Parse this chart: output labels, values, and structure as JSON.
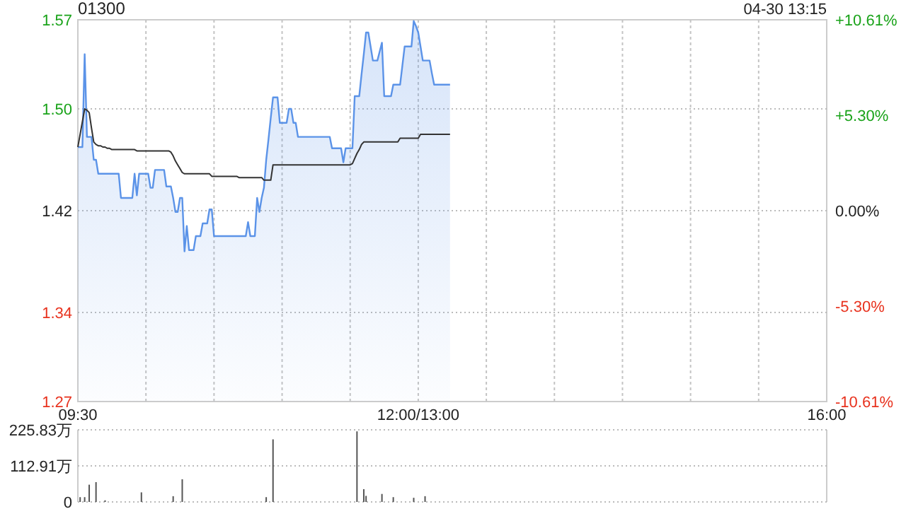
{
  "chart_data": [
    {
      "type": "area",
      "title": "01300",
      "annotations": [
        "04-30 13:15"
      ],
      "categories": [
        "09:30",
        null,
        null,
        null,
        null,
        null,
        null,
        null,
        null,
        null,
        null,
        null,
        null,
        null,
        null,
        null,
        null,
        null,
        null,
        null,
        null,
        null,
        null,
        null,
        null,
        null,
        null,
        null,
        null,
        null,
        null,
        null,
        null,
        null,
        null,
        null,
        null,
        null,
        null,
        null,
        null,
        null,
        null,
        null,
        null,
        null,
        null,
        null,
        null,
        null,
        null,
        null,
        null,
        null,
        null,
        null,
        null,
        null,
        null,
        null,
        null,
        null,
        null,
        null,
        null,
        null,
        null,
        null,
        null,
        null,
        null,
        null,
        null,
        null,
        null,
        null,
        null,
        null,
        null,
        null,
        null,
        null,
        null,
        null,
        null,
        null,
        null,
        null,
        null,
        null,
        null,
        null,
        null,
        null,
        null,
        null,
        null,
        null,
        null,
        null,
        null,
        null,
        null,
        null,
        null,
        null,
        null,
        null,
        null,
        null,
        null,
        null,
        null,
        null,
        null,
        null,
        null,
        null,
        null,
        null,
        null,
        null,
        null,
        null,
        null,
        null,
        null,
        null,
        null,
        null,
        null,
        null,
        null,
        null,
        null,
        null,
        null,
        null,
        null,
        null,
        null,
        null,
        null,
        null,
        null,
        null,
        null,
        null,
        null,
        null,
        "12:00/13:00",
        null,
        null,
        null,
        null,
        null,
        null,
        null,
        null,
        null,
        null,
        null,
        null,
        null,
        null,
        null,
        null,
        null,
        null,
        null,
        null,
        null,
        null,
        null,
        null,
        null,
        null,
        null,
        null,
        null,
        null,
        null,
        null,
        null,
        null,
        null,
        null,
        null,
        null,
        null,
        null,
        null,
        null,
        null,
        null,
        null,
        null,
        null,
        null,
        null,
        null,
        null,
        null,
        null,
        null,
        null,
        null,
        null,
        null,
        null,
        null,
        null,
        null,
        null,
        null,
        null,
        null,
        null,
        null,
        null,
        null,
        null,
        null,
        null,
        null,
        null,
        null,
        null,
        null,
        null,
        null,
        null,
        null,
        null,
        null,
        null,
        null,
        null,
        null,
        null,
        null,
        null,
        null,
        null,
        null,
        null,
        null,
        null,
        null,
        null,
        null,
        null,
        null,
        null,
        null,
        null,
        null,
        null,
        null,
        null,
        null,
        null,
        null,
        null,
        null,
        null,
        null,
        null,
        null,
        null,
        null,
        null,
        null,
        null,
        null,
        null,
        null,
        null,
        null,
        null,
        null,
        null,
        null,
        null,
        null,
        null,
        null,
        null,
        null,
        null,
        null,
        null,
        null,
        null,
        null,
        null,
        null,
        null,
        null,
        null,
        null,
        null,
        null,
        null,
        null,
        null,
        null,
        null,
        null,
        null,
        null,
        null,
        null,
        null,
        null,
        null,
        null,
        null,
        null,
        null,
        null,
        null,
        null,
        null,
        null,
        null,
        null,
        null,
        null,
        null,
        "16:00"
      ],
      "ylim": [
        1.27,
        1.57
      ],
      "yticks": [
        1.27,
        1.34,
        1.42,
        {
          "value": 1.5,
          "label": "1.50"
        },
        1.57
      ],
      "y2lim": [
        -10.61,
        10.61
      ],
      "y2ticks": [
        {
          "value": -10.61,
          "label": "-10.61%"
        },
        {
          "value": -5.3,
          "label": "-5.30%"
        },
        {
          "value": 0,
          "label": "0.00%"
        },
        {
          "value": 5.3,
          "label": "+5.30%"
        },
        {
          "value": 10.61,
          "label": "+10.61%"
        }
      ],
      "grid": true,
      "series": [
        {
          "type": "area",
          "color": "#5b93e8",
          "values": [
            1.47,
            1.47,
            1.47,
            1.543,
            1.478,
            1.478,
            1.478,
            1.46,
            1.46,
            1.449,
            1.449,
            1.449,
            1.449,
            1.449,
            1.449,
            1.449,
            1.449,
            1.449,
            1.449,
            1.43,
            1.43,
            1.43,
            1.43,
            1.43,
            1.43,
            1.449,
            1.432,
            1.449,
            1.449,
            1.449,
            1.449,
            1.449,
            1.438,
            1.438,
            1.452,
            1.452,
            1.452,
            1.452,
            1.452,
            1.439,
            1.439,
            1.439,
            1.43,
            1.419,
            1.419,
            1.43,
            1.43,
            1.388,
            1.408,
            1.389,
            1.389,
            1.389,
            1.4,
            1.4,
            1.4,
            1.41,
            1.41,
            1.41,
            1.421,
            1.421,
            1.4,
            1.4,
            1.4,
            1.4,
            1.4,
            1.4,
            1.4,
            1.4,
            1.4,
            1.4,
            1.4,
            1.4,
            1.4,
            1.4,
            1.4,
            1.411,
            1.4,
            1.4,
            1.4,
            1.43,
            1.419,
            1.43,
            1.438,
            1.46,
            1.476,
            1.493,
            1.509,
            1.509,
            1.509,
            1.489,
            1.489,
            1.489,
            1.489,
            1.5,
            1.5,
            1.489,
            1.489,
            1.478,
            1.478,
            1.478,
            1.478,
            1.478,
            1.478,
            1.478,
            1.478,
            1.478,
            1.478,
            1.478,
            1.478,
            1.478,
            1.478,
            1.478,
            1.469,
            1.469,
            1.469,
            1.469,
            1.469,
            1.458,
            1.469,
            1.469,
            1.469,
            1.469,
            1.51,
            1.51,
            1.51,
            1.527,
            1.543,
            1.56,
            1.56,
            1.549,
            1.538,
            1.538,
            1.538,
            1.545,
            1.552,
            1.51,
            1.51,
            1.51,
            1.51,
            1.519,
            1.519,
            1.519,
            1.519,
            1.534,
            1.549,
            1.549,
            1.549,
            1.549,
            1.569,
            1.565,
            1.56,
            1.549,
            1.538,
            1.538,
            1.538,
            1.538,
            1.528,
            1.519,
            1.519,
            1.519,
            1.519,
            1.519,
            1.519,
            1.519,
            1.519,
            null,
            null,
            null,
            null,
            null,
            null,
            null,
            null,
            null,
            null,
            null,
            null,
            null,
            null,
            null,
            null,
            null,
            null,
            null,
            null,
            null,
            null,
            null,
            null,
            null,
            null,
            null,
            null,
            null,
            null,
            null,
            null,
            null,
            null,
            null,
            null,
            null,
            null,
            null,
            null,
            null,
            null,
            null,
            null,
            null,
            null,
            null,
            null,
            null,
            null,
            null,
            null,
            null,
            null,
            null,
            null,
            null,
            null,
            null,
            null,
            null,
            null,
            null,
            null,
            null,
            null,
            null,
            null,
            null,
            null,
            null,
            null,
            null,
            null,
            null,
            null,
            null,
            null,
            null,
            null,
            null,
            null,
            null,
            null,
            null,
            null,
            null,
            null,
            null,
            null,
            null,
            null,
            null,
            null,
            null,
            null,
            null,
            null,
            null,
            null,
            null,
            null,
            null,
            null,
            null,
            null,
            null,
            null,
            null,
            null,
            null,
            null,
            null,
            null,
            null,
            null,
            null,
            null,
            null,
            null,
            null,
            null,
            null,
            null,
            null,
            null,
            null,
            null,
            null,
            null,
            null,
            null,
            null,
            null,
            null,
            null,
            null,
            null,
            null,
            null,
            null,
            null,
            null,
            null,
            null,
            null,
            null,
            null,
            null,
            null,
            null,
            null,
            null,
            null,
            null,
            null,
            null,
            null,
            null,
            null,
            null,
            null,
            null,
            null,
            null,
            null
          ]
        },
        {
          "type": "line",
          "color": "#333333",
          "values": [
            1.47,
            1.48,
            1.49,
            1.5,
            1.499,
            1.497,
            1.485,
            1.474,
            1.472,
            1.471,
            1.471,
            1.47,
            1.47,
            1.469,
            1.469,
            1.468,
            1.468,
            1.468,
            1.468,
            1.468,
            1.468,
            1.468,
            1.468,
            1.468,
            1.468,
            1.468,
            1.467,
            1.467,
            1.467,
            1.467,
            1.467,
            1.467,
            1.467,
            1.467,
            1.467,
            1.467,
            1.467,
            1.467,
            1.467,
            1.467,
            1.467,
            1.466,
            1.463,
            1.459,
            1.456,
            1.453,
            1.45,
            1.449,
            1.449,
            1.449,
            1.449,
            1.449,
            1.449,
            1.449,
            1.449,
            1.449,
            1.449,
            1.449,
            1.449,
            1.447,
            1.447,
            1.447,
            1.447,
            1.447,
            1.447,
            1.447,
            1.447,
            1.447,
            1.447,
            1.447,
            1.447,
            1.446,
            1.446,
            1.446,
            1.446,
            1.446,
            1.446,
            1.446,
            1.446,
            1.446,
            1.446,
            1.446,
            1.444,
            1.444,
            1.444,
            1.444,
            1.456,
            1.456,
            1.456,
            1.456,
            1.456,
            1.456,
            1.456,
            1.456,
            1.456,
            1.456,
            1.456,
            1.456,
            1.456,
            1.456,
            1.456,
            1.456,
            1.456,
            1.456,
            1.456,
            1.456,
            1.456,
            1.456,
            1.456,
            1.456,
            1.456,
            1.456,
            1.456,
            1.456,
            1.456,
            1.456,
            1.456,
            1.456,
            1.456,
            1.456,
            1.456,
            1.457,
            1.461,
            1.465,
            1.468,
            1.472,
            1.474,
            1.474,
            1.474,
            1.474,
            1.474,
            1.474,
            1.474,
            1.474,
            1.474,
            1.474,
            1.474,
            1.474,
            1.474,
            1.474,
            1.474,
            1.474,
            1.477,
            1.477,
            1.477,
            1.477,
            1.477,
            1.477,
            1.477,
            1.477,
            1.477,
            1.48,
            1.48,
            1.48,
            1.48,
            1.48,
            1.48,
            1.48,
            1.48,
            1.48,
            1.48,
            1.48,
            1.48,
            1.48,
            1.48,
            null,
            null,
            null,
            null,
            null,
            null,
            null,
            null,
            null,
            null,
            null,
            null,
            null,
            null,
            null,
            null,
            null,
            null,
            null,
            null,
            null,
            null,
            null,
            null,
            null,
            null,
            null,
            null,
            null,
            null,
            null,
            null,
            null,
            null,
            null,
            null,
            null,
            null,
            null,
            null,
            null,
            null,
            null,
            null,
            null,
            null,
            null,
            null,
            null,
            null,
            null,
            null,
            null,
            null,
            null,
            null,
            null,
            null,
            null,
            null,
            null,
            null,
            null,
            null,
            null,
            null,
            null,
            null,
            null,
            null,
            null,
            null,
            null,
            null,
            null,
            null,
            null,
            null,
            null,
            null,
            null,
            null,
            null,
            null,
            null,
            null,
            null,
            null,
            null,
            null,
            null,
            null,
            null,
            null,
            null,
            null,
            null,
            null,
            null,
            null,
            null,
            null,
            null,
            null,
            null,
            null,
            null,
            null,
            null,
            null,
            null,
            null,
            null,
            null,
            null,
            null,
            null,
            null,
            null,
            null,
            null,
            null,
            null,
            null,
            null,
            null,
            null,
            null,
            null,
            null,
            null,
            null,
            null,
            null,
            null,
            null,
            null,
            null,
            null,
            null,
            null,
            null,
            null,
            null,
            null,
            null,
            null,
            null,
            null,
            null,
            null,
            null,
            null,
            null,
            null,
            null,
            null,
            null,
            null,
            null,
            null,
            null,
            null,
            null,
            null,
            null
          ]
        }
      ]
    },
    {
      "type": "bar",
      "color": "#555555",
      "tick_labels": "y",
      "grid": "y",
      "categories": [
        null,
        null,
        null,
        null,
        null,
        null,
        null,
        null,
        null,
        null,
        null,
        null,
        null,
        null,
        null,
        null,
        null,
        null,
        null,
        null,
        null,
        null,
        null,
        null,
        null,
        null,
        null,
        null,
        null,
        null,
        null,
        null,
        null,
        null,
        null,
        null,
        null,
        null,
        null,
        null,
        null,
        null,
        null,
        null,
        null,
        null,
        null,
        null,
        null,
        null,
        null,
        null,
        null,
        null,
        null,
        null,
        null,
        null,
        null,
        null,
        null,
        null,
        null,
        null,
        null,
        null,
        null,
        null,
        null,
        null,
        null,
        null,
        null,
        null,
        null,
        null,
        null,
        null,
        null,
        null,
        null,
        null,
        null,
        null,
        null,
        null,
        null,
        null,
        null,
        null,
        null,
        null,
        null,
        null,
        null,
        null,
        null,
        null,
        null,
        null,
        null,
        null,
        null,
        null,
        null,
        null,
        null,
        null,
        null,
        null,
        null,
        null,
        null,
        null,
        null,
        null,
        null,
        null,
        null,
        null,
        null,
        null,
        null,
        null,
        null,
        null,
        null,
        null,
        null,
        null,
        null,
        null,
        null,
        null,
        null,
        null,
        null,
        null,
        null,
        null,
        null,
        null,
        null,
        null,
        null,
        null,
        null,
        null,
        null,
        null,
        null,
        null,
        null,
        null,
        null,
        null,
        null,
        null,
        null,
        null,
        null,
        null,
        null,
        null,
        null,
        null,
        null,
        null,
        null,
        null,
        null,
        null,
        null,
        null,
        null,
        null,
        null,
        null,
        null,
        null,
        null,
        null,
        null,
        null,
        null,
        null,
        null,
        null,
        null,
        null,
        null,
        null,
        null,
        null,
        null,
        null,
        null,
        null,
        null,
        null,
        null,
        null,
        null,
        null,
        null,
        null,
        null,
        null,
        null,
        null,
        null,
        null,
        null,
        null,
        null,
        null,
        null,
        null,
        null,
        null,
        null,
        null,
        null,
        null,
        null,
        null,
        null,
        null,
        null,
        null,
        null,
        null,
        null,
        null,
        null,
        null,
        null,
        null,
        null,
        null,
        null,
        null,
        null,
        null,
        null,
        null,
        null,
        null,
        null,
        null,
        null,
        null,
        null,
        null,
        null,
        null,
        null,
        null,
        null,
        null,
        null,
        null,
        null,
        null,
        null,
        null,
        null,
        null,
        null,
        null,
        null,
        null,
        null,
        null,
        null,
        null,
        null,
        null,
        null,
        null,
        null,
        null,
        null,
        null,
        null,
        null,
        null,
        null,
        null,
        null,
        null,
        null,
        null,
        null,
        null,
        null,
        null,
        null,
        null,
        null,
        null,
        null,
        null,
        null,
        null,
        null,
        null,
        null,
        null,
        null,
        null,
        null,
        null,
        null,
        null,
        null,
        null,
        null,
        null,
        null,
        null,
        null,
        null,
        null,
        null,
        null,
        null,
        null,
        null,
        null,
        null
      ],
      "ylim": [
        0,
        225.83
      ],
      "yticks": [
        0,
        {
          "value": 112.91,
          "label": "112.91万"
        },
        {
          "value": 225.83,
          "label": "225.83万"
        }
      ],
      "values": [
        null,
        15,
        null,
        15,
        null,
        54,
        null,
        null,
        62,
        null,
        null,
        null,
        5,
        null,
        null,
        null,
        null,
        null,
        null,
        null,
        null,
        null,
        null,
        null,
        null,
        null,
        null,
        null,
        30,
        null,
        null,
        null,
        null,
        null,
        null,
        null,
        null,
        null,
        null,
        null,
        null,
        null,
        18,
        null,
        null,
        null,
        71,
        null,
        null,
        null,
        null,
        null,
        null,
        null,
        null,
        null,
        null,
        null,
        null,
        null,
        null,
        null,
        null,
        null,
        null,
        null,
        null,
        null,
        null,
        null,
        null,
        null,
        null,
        null,
        null,
        null,
        null,
        null,
        null,
        null,
        null,
        null,
        null,
        15,
        null,
        null,
        196,
        null,
        null,
        null,
        null,
        null,
        null,
        null,
        null,
        null,
        null,
        null,
        null,
        null,
        null,
        null,
        null,
        null,
        null,
        null,
        null,
        null,
        null,
        null,
        null,
        null,
        null,
        null,
        null,
        null,
        null,
        null,
        null,
        null,
        null,
        null,
        null,
        221,
        null,
        null,
        40,
        19,
        null,
        null,
        null,
        null,
        null,
        null,
        25,
        null,
        null,
        null,
        null,
        15,
        null,
        null,
        null,
        null,
        null,
        null,
        null,
        null,
        13,
        null,
        null,
        null,
        null,
        18,
        null,
        null,
        null,
        null,
        null,
        null,
        null,
        null,
        null,
        null,
        null,
        null,
        null,
        null,
        null,
        null,
        null,
        null,
        null,
        null,
        null,
        null,
        null,
        null,
        null,
        null,
        null,
        null,
        null,
        null,
        null,
        null,
        null,
        null,
        null,
        null,
        null,
        null,
        null,
        null,
        null,
        null,
        null,
        null,
        null,
        null,
        null,
        null,
        null,
        null,
        null,
        null,
        null,
        null,
        null,
        null,
        null,
        null,
        null,
        null,
        null,
        null,
        null,
        null,
        null,
        null,
        null,
        null,
        null,
        null,
        null,
        null,
        null,
        null,
        null,
        null,
        null,
        null,
        null,
        null,
        null,
        null,
        null,
        null,
        null,
        null,
        null,
        null,
        null,
        null,
        null,
        null,
        null,
        null,
        null,
        null,
        null,
        null,
        null,
        null,
        null,
        null,
        null,
        null,
        null,
        null,
        null,
        null,
        null,
        null,
        null,
        null,
        null,
        null,
        null,
        null,
        null,
        null,
        null,
        null,
        null,
        null,
        null,
        null,
        null,
        null,
        null,
        null,
        null,
        null,
        null,
        null,
        null,
        null,
        null,
        null,
        null,
        null,
        null,
        null,
        null,
        null,
        null,
        null,
        null,
        null,
        null,
        null,
        null,
        null,
        null,
        null,
        null,
        null,
        null,
        null,
        null,
        null,
        null,
        null,
        null,
        null,
        null,
        null,
        null,
        null,
        null,
        null,
        null,
        null,
        null,
        null,
        null,
        null,
        null,
        null,
        null
      ]
    }
  ]
}
